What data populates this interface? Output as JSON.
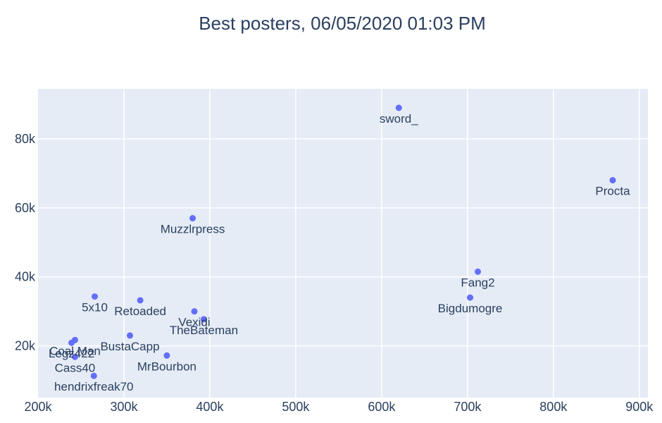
{
  "chart_data": {
    "type": "scatter",
    "title": "Best posters, 06/05/2020 01:03 PM",
    "xlabel": "",
    "ylabel": "",
    "xlim": [
      200000,
      910000
    ],
    "ylim": [
      5000,
      94500
    ],
    "grid": true,
    "x_ticks": [
      {
        "value": 200000,
        "label": "200k"
      },
      {
        "value": 300000,
        "label": "300k"
      },
      {
        "value": 400000,
        "label": "400k"
      },
      {
        "value": 500000,
        "label": "500k"
      },
      {
        "value": 600000,
        "label": "600k"
      },
      {
        "value": 700000,
        "label": "700k"
      },
      {
        "value": 800000,
        "label": "800k"
      },
      {
        "value": 900000,
        "label": "900k"
      }
    ],
    "y_ticks": [
      {
        "value": 20000,
        "label": "20k"
      },
      {
        "value": 40000,
        "label": "40k"
      },
      {
        "value": 60000,
        "label": "60k"
      },
      {
        "value": 80000,
        "label": "80k"
      }
    ],
    "points": [
      {
        "name": "sword_",
        "x": 620000,
        "y": 89000
      },
      {
        "name": "Procta",
        "x": 869000,
        "y": 68000
      },
      {
        "name": "Muzzlrpress",
        "x": 380000,
        "y": 57000
      },
      {
        "name": "Fang2",
        "x": 712000,
        "y": 41500
      },
      {
        "name": "Bigdumogre",
        "x": 703000,
        "y": 34000
      },
      {
        "name": "5x10",
        "x": 266000,
        "y": 34300
      },
      {
        "name": "Retoaded",
        "x": 319000,
        "y": 33200
      },
      {
        "name": "Vexidi",
        "x": 382000,
        "y": 30000
      },
      {
        "name": "TheBateman",
        "x": 393000,
        "y": 27700
      },
      {
        "name": "BustaCapp",
        "x": 307000,
        "y": 23000
      },
      {
        "name": "Coal Man",
        "x": 243000,
        "y": 21700
      },
      {
        "name": "Legz422",
        "x": 239000,
        "y": 20900
      },
      {
        "name": "Cass40",
        "x": 243000,
        "y": 16800
      },
      {
        "name": "MrBourbon",
        "x": 350000,
        "y": 17200
      },
      {
        "name": "hendrixfreak70",
        "x": 265000,
        "y": 11300
      }
    ]
  }
}
